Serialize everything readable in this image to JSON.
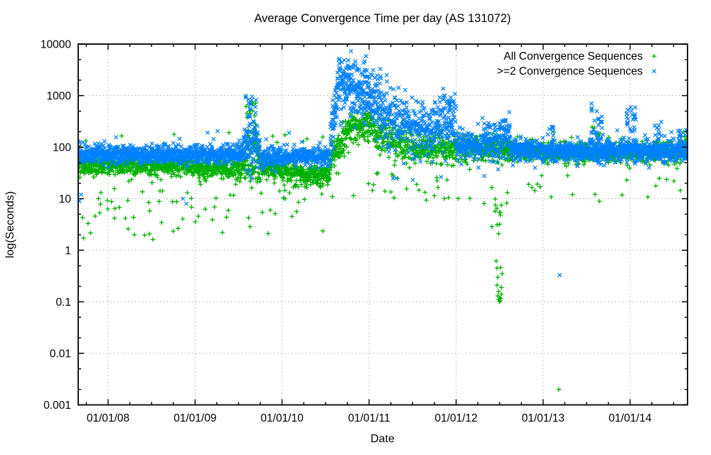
{
  "page": {
    "background": "#ffffff"
  },
  "chart_data": {
    "type": "scatter",
    "title": "Average Convergence Time per day (AS 131072)",
    "xlabel": "Date",
    "ylabel": "log(Seconds)",
    "grid": {
      "show": true,
      "color": "#b3b3b3"
    },
    "legend_position": "top-right-inside",
    "x_axis": {
      "unit": "decimal_year",
      "min": 2007.657,
      "max": 2014.66,
      "major_ticks": [
        {
          "year": 2008,
          "label": "01/01/08"
        },
        {
          "year": 2009,
          "label": "01/01/09"
        },
        {
          "year": 2010,
          "label": "01/01/10"
        },
        {
          "year": 2011,
          "label": "01/01/11"
        },
        {
          "year": 2012,
          "label": "01/01/12"
        },
        {
          "year": 2013,
          "label": "01/01/13"
        },
        {
          "year": 2014,
          "label": "01/01/14"
        }
      ],
      "minor_tick_step_years": 0.25
    },
    "y_axis": {
      "scale": "log",
      "min": 0.001,
      "max": 10000,
      "major_ticks": [
        {
          "value": 10000,
          "label": "10000"
        },
        {
          "value": 1000,
          "label": "1000"
        },
        {
          "value": 100,
          "label": "100"
        },
        {
          "value": 10,
          "label": "10"
        },
        {
          "value": 1,
          "label": "1"
        },
        {
          "value": 0.1,
          "label": "0.1"
        },
        {
          "value": 0.01,
          "label": "0.01"
        },
        {
          "value": 0.001,
          "label": "0.001"
        }
      ],
      "minor_mantissas": [
        2,
        5
      ]
    },
    "generator_seed": 1337,
    "series": [
      {
        "name": "All Convergence Sequences",
        "marker": "plus",
        "color": "#00b000",
        "bands": [
          {
            "t0": 2007.657,
            "t1": 2009.0,
            "log_mean0": 1.63,
            "log_mean1": 1.63,
            "log_sd": 0.09,
            "per_year": 430,
            "outlier_rate": 0.06,
            "outlier_log_range": [
              0.2,
              1.35
            ]
          },
          {
            "t0": 2009.0,
            "t1": 2009.55,
            "log_mean0": 1.6,
            "log_mean1": 1.6,
            "log_sd": 0.1,
            "per_year": 430,
            "outlier_rate": 0.06,
            "outlier_log_range": [
              0.3,
              1.35
            ]
          },
          {
            "t0": 2009.55,
            "t1": 2009.75,
            "log_mean0": 1.7,
            "log_mean1": 1.7,
            "log_sd": 0.25,
            "per_year": 430,
            "outlier_rate": 0.05,
            "outlier_log_range": [
              0.3,
              1.3
            ]
          },
          {
            "t0": 2009.75,
            "t1": 2010.0,
            "log_mean0": 1.58,
            "log_mean1": 1.58,
            "log_sd": 0.1,
            "per_year": 430,
            "outlier_rate": 0.06,
            "outlier_log_range": [
              0.3,
              1.3
            ]
          },
          {
            "t0": 2010.0,
            "t1": 2010.55,
            "log_mean0": 1.47,
            "log_mean1": 1.47,
            "log_sd": 0.12,
            "per_year": 430,
            "outlier_rate": 0.06,
            "outlier_log_range": [
              0.3,
              1.3
            ]
          },
          {
            "t0": 2010.55,
            "t1": 2010.78,
            "log_mean0": 1.7,
            "log_mean1": 2.35,
            "log_sd": 0.16,
            "per_year": 430,
            "outlier_rate": 0.02,
            "outlier_log_range": [
              1.0,
              1.5
            ]
          },
          {
            "t0": 2010.78,
            "t1": 2011.05,
            "log_mean0": 2.42,
            "log_mean1": 2.38,
            "log_sd": 0.15,
            "per_year": 430,
            "outlier_rate": 0.02,
            "outlier_log_range": [
              1.0,
              1.6
            ]
          },
          {
            "t0": 2011.05,
            "t1": 2011.5,
            "log_mean0": 2.25,
            "log_mean1": 2.02,
            "log_sd": 0.18,
            "per_year": 400,
            "outlier_rate": 0.04,
            "outlier_log_range": [
              0.9,
              1.5
            ]
          },
          {
            "t0": 2011.5,
            "t1": 2012.0,
            "log_mean0": 1.97,
            "log_mean1": 1.95,
            "log_sd": 0.15,
            "per_year": 400,
            "outlier_rate": 0.04,
            "outlier_log_range": [
              0.9,
              1.5
            ]
          },
          {
            "t0": 2012.0,
            "t1": 2012.6,
            "log_mean0": 1.95,
            "log_mean1": 1.95,
            "log_sd": 0.12,
            "per_year": 400,
            "outlier_rate": 0.04,
            "outlier_log_range": [
              0.8,
              1.4
            ]
          },
          {
            "t0": 2012.6,
            "t1": 2013.0,
            "log_mean0": 1.93,
            "log_mean1": 1.93,
            "log_sd": 0.1,
            "per_year": 420,
            "outlier_rate": 0.05,
            "outlier_log_range": [
              1.1,
              1.6
            ]
          },
          {
            "t0": 2013.0,
            "t1": 2014.66,
            "log_mean0": 1.9,
            "log_mean1": 1.9,
            "log_sd": 0.1,
            "per_year": 430,
            "outlier_rate": 0.03,
            "outlier_log_range": [
              0.9,
              1.5
            ]
          }
        ],
        "spikes": [
          {
            "t0": 2009.58,
            "t1": 2009.72,
            "n": 22,
            "log_lo": 1.9,
            "log_hi": 2.9
          },
          {
            "t0": 2007.66,
            "t1": 2010.5,
            "n": 12,
            "log_lo": 2.0,
            "log_hi": 2.3
          },
          {
            "t0": 2012.4,
            "t1": 2012.55,
            "n": 6,
            "log_lo": 0.3,
            "log_hi": 0.95
          },
          {
            "t0": 2013.55,
            "t1": 2013.66,
            "n": 10,
            "log_lo": 2.0,
            "log_hi": 2.4
          },
          {
            "t0": 2014.58,
            "t1": 2014.66,
            "n": 10,
            "log_lo": 2.0,
            "log_hi": 2.35
          }
        ],
        "points": [
          [
            2012.46,
            0.62
          ],
          [
            2012.47,
            0.45
          ],
          [
            2012.47,
            0.21
          ],
          [
            2012.48,
            0.13
          ],
          [
            2012.48,
            0.3
          ],
          [
            2012.49,
            0.11
          ],
          [
            2012.49,
            0.16
          ],
          [
            2012.5,
            0.1
          ],
          [
            2012.5,
            0.12
          ],
          [
            2012.505,
            0.105
          ],
          [
            2012.51,
            0.115
          ],
          [
            2012.51,
            0.46
          ],
          [
            2012.52,
            0.19
          ],
          [
            2012.52,
            0.14
          ],
          [
            2012.53,
            0.35
          ],
          [
            2012.49,
            2.1
          ],
          [
            2012.5,
            3.2
          ],
          [
            2012.47,
            6.5
          ],
          [
            2012.52,
            7.5
          ],
          [
            2013.18,
            0.002
          ]
        ]
      },
      {
        "name": ">=2 Convergence Sequences",
        "marker": "cross",
        "color": "#0080ff",
        "bands": [
          {
            "t0": 2007.657,
            "t1": 2009.55,
            "log_mean0": 1.86,
            "log_mean1": 1.86,
            "log_sd": 0.085,
            "per_year": 500,
            "outlier_rate": 0.012,
            "outlier_log_range": [
              2.05,
              2.35
            ]
          },
          {
            "t0": 2009.55,
            "t1": 2009.75,
            "log_mean0": 2.0,
            "log_mean1": 2.0,
            "log_sd": 0.22,
            "per_year": 450,
            "outlier_rate": 0.0,
            "outlier_log_range": [
              0,
              0
            ]
          },
          {
            "t0": 2009.75,
            "t1": 2010.05,
            "log_mean0": 1.8,
            "log_mean1": 1.8,
            "log_sd": 0.1,
            "per_year": 450,
            "outlier_rate": 0.01,
            "outlier_log_range": [
              2.0,
              2.2
            ]
          },
          {
            "t0": 2010.05,
            "t1": 2010.55,
            "log_mean0": 1.82,
            "log_mean1": 1.82,
            "log_sd": 0.08,
            "per_year": 500,
            "outlier_rate": 0.008,
            "outlier_log_range": [
              2.0,
              2.2
            ]
          },
          {
            "t0": 2010.55,
            "t1": 2010.65,
            "log_mean0": 2.2,
            "log_mean1": 3.25,
            "log_sd": 0.25,
            "per_year": 500,
            "outlier_rate": 0.0,
            "outlier_log_range": [
              0,
              0
            ]
          },
          {
            "t0": 2010.65,
            "t1": 2011.0,
            "log_mean0": 3.2,
            "log_mean1": 3.0,
            "log_sd": 0.27,
            "per_year": 500,
            "outlier_rate": 0.0,
            "outlier_log_range": [
              0,
              0
            ]
          },
          {
            "t0": 2011.0,
            "t1": 2011.3,
            "log_mean0": 2.85,
            "log_mean1": 2.55,
            "log_sd": 0.27,
            "per_year": 450,
            "outlier_rate": 0.01,
            "outlier_log_range": [
              1.3,
              1.8
            ]
          },
          {
            "t0": 2011.3,
            "t1": 2011.75,
            "log_mean0": 2.45,
            "log_mean1": 2.35,
            "log_sd": 0.26,
            "per_year": 420,
            "outlier_rate": 0.01,
            "outlier_log_range": [
              1.2,
              1.8
            ]
          },
          {
            "t0": 2011.75,
            "t1": 2012.0,
            "log_mean0": 2.5,
            "log_mean1": 2.45,
            "log_sd": 0.28,
            "per_year": 420,
            "outlier_rate": 0.01,
            "outlier_log_range": [
              1.3,
              1.8
            ]
          },
          {
            "t0": 2012.0,
            "t1": 2012.3,
            "log_mean0": 2.05,
            "log_mean1": 2.05,
            "log_sd": 0.13,
            "per_year": 450,
            "outlier_rate": 0.008,
            "outlier_log_range": [
              1.3,
              1.7
            ]
          },
          {
            "t0": 2012.3,
            "t1": 2012.5,
            "log_mean0": 2.12,
            "log_mean1": 2.12,
            "log_sd": 0.2,
            "per_year": 450,
            "outlier_rate": 0.008,
            "outlier_log_range": [
              1.3,
              1.7
            ]
          },
          {
            "t0": 2012.5,
            "t1": 2012.63,
            "log_mean0": 2.25,
            "log_mean1": 2.2,
            "log_sd": 0.24,
            "per_year": 450,
            "outlier_rate": 0.0,
            "outlier_log_range": [
              0,
              0
            ]
          },
          {
            "t0": 2012.63,
            "t1": 2013.0,
            "log_mean0": 1.95,
            "log_mean1": 1.95,
            "log_sd": 0.1,
            "per_year": 500,
            "outlier_rate": 0.006,
            "outlier_log_range": [
              1.4,
              1.7
            ]
          },
          {
            "t0": 2013.0,
            "t1": 2014.66,
            "log_mean0": 1.92,
            "log_mean1": 1.92,
            "log_sd": 0.1,
            "per_year": 500,
            "outlier_rate": 0.008,
            "outlier_log_range": [
              2.1,
              2.35
            ]
          }
        ],
        "spikes": [
          {
            "t0": 2009.58,
            "t1": 2009.7,
            "n": 25,
            "log_lo": 2.2,
            "log_hi": 3.0
          },
          {
            "t0": 2010.62,
            "t1": 2010.98,
            "n": 18,
            "log_lo": 3.4,
            "log_hi": 3.72
          },
          {
            "t0": 2011.0,
            "t1": 2011.15,
            "n": 8,
            "log_lo": 3.2,
            "log_hi": 3.55
          },
          {
            "t0": 2011.8,
            "t1": 2011.98,
            "n": 10,
            "log_lo": 2.7,
            "log_hi": 2.95
          },
          {
            "t0": 2013.05,
            "t1": 2013.12,
            "n": 8,
            "log_lo": 2.1,
            "log_hi": 2.4
          },
          {
            "t0": 2013.55,
            "t1": 2013.68,
            "n": 28,
            "log_lo": 2.1,
            "log_hi": 2.85
          },
          {
            "t0": 2013.96,
            "t1": 2014.08,
            "n": 24,
            "log_lo": 2.1,
            "log_hi": 2.8
          },
          {
            "t0": 2014.28,
            "t1": 2014.36,
            "n": 12,
            "log_lo": 2.1,
            "log_hi": 2.5
          },
          {
            "t0": 2014.55,
            "t1": 2014.66,
            "n": 12,
            "log_lo": 2.0,
            "log_hi": 2.35
          }
        ],
        "points": [
          [
            2007.67,
            9
          ],
          [
            2007.69,
            12
          ],
          [
            2008.86,
            10
          ],
          [
            2008.9,
            8
          ],
          [
            2010.08,
            190
          ],
          [
            2013.19,
            0.33
          ]
        ]
      }
    ]
  }
}
